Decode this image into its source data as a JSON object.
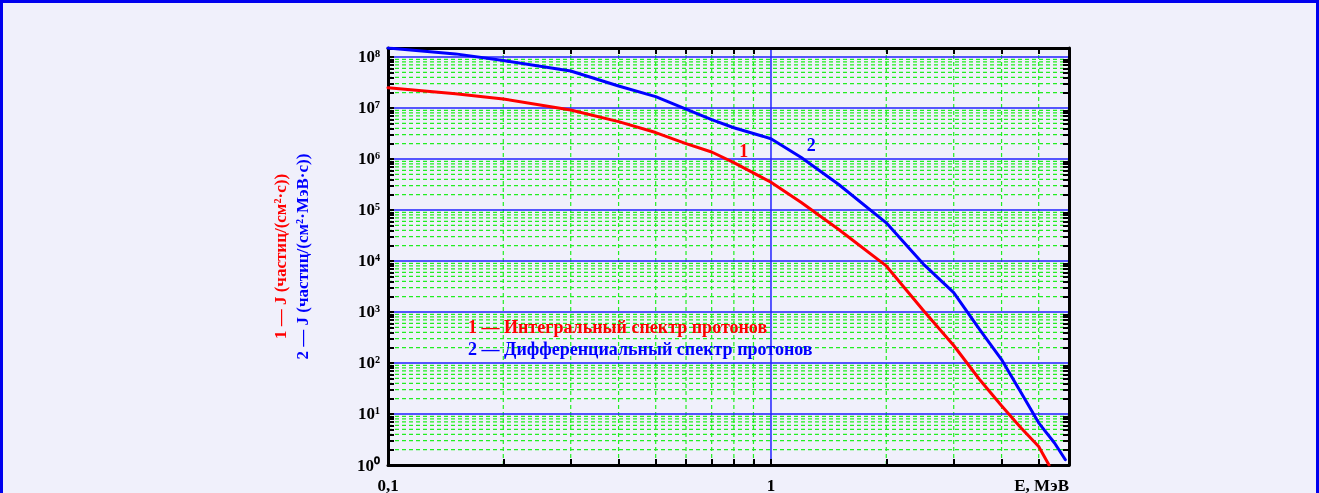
{
  "chart_data": {
    "type": "line",
    "xlabel": "E, МэВ",
    "ylabel": "1 — J (частиц/(см²·с))\n2 — J (частиц/(см²·МэВ·с))",
    "log": "xy",
    "grid": true,
    "legend": "center left",
    "marker": "none",
    "line_style": "solid",
    "xlim": [
      0.1,
      6
    ],
    "xticks": [
      {
        "value": 0.1,
        "label": "0,1"
      },
      {
        "value": 0.2,
        "label": null
      },
      {
        "value": 0.3,
        "label": null
      },
      {
        "value": 0.4,
        "label": null
      },
      {
        "value": 0.5,
        "label": null
      },
      {
        "value": 0.6,
        "label": null
      },
      {
        "value": 0.7,
        "label": null
      },
      {
        "value": 0.8,
        "label": null
      },
      {
        "value": 0.9,
        "label": null
      },
      {
        "value": 1,
        "label": "1"
      },
      {
        "value": 2,
        "label": null
      },
      {
        "value": 3,
        "label": null
      },
      {
        "value": 4,
        "label": null
      },
      {
        "value": 5,
        "label": null
      }
    ],
    "ylim": [
      1,
      150000000
    ],
    "yticks": [
      {
        "value": 1,
        "label": "10⁰"
      },
      {
        "value": 2,
        "label": null
      },
      {
        "value": 3,
        "label": null
      },
      {
        "value": 4,
        "label": null
      },
      {
        "value": 5,
        "label": null
      },
      {
        "value": 6,
        "label": null
      },
      {
        "value": 7,
        "label": null
      },
      {
        "value": 8,
        "label": null
      },
      {
        "value": 9,
        "label": null
      },
      {
        "value": 10,
        "label": "10¹"
      },
      {
        "value": 20,
        "label": null
      },
      {
        "value": 30,
        "label": null
      },
      {
        "value": 40,
        "label": null
      },
      {
        "value": 50,
        "label": null
      },
      {
        "value": 60,
        "label": null
      },
      {
        "value": 70,
        "label": null
      },
      {
        "value": 80,
        "label": null
      },
      {
        "value": 90,
        "label": null
      },
      {
        "value": 100,
        "label": "10²"
      },
      {
        "value": 200,
        "label": null
      },
      {
        "value": 300,
        "label": null
      },
      {
        "value": 400,
        "label": null
      },
      {
        "value": 500,
        "label": null
      },
      {
        "value": 600,
        "label": null
      },
      {
        "value": 700,
        "label": null
      },
      {
        "value": 800,
        "label": null
      },
      {
        "value": 900,
        "label": null
      },
      {
        "value": 1000,
        "label": "10³"
      },
      {
        "value": 2000,
        "label": null
      },
      {
        "value": 3000,
        "label": null
      },
      {
        "value": 4000,
        "label": null
      },
      {
        "value": 5000,
        "label": null
      },
      {
        "value": 6000,
        "label": null
      },
      {
        "value": 7000,
        "label": null
      },
      {
        "value": 8000,
        "label": null
      },
      {
        "value": 9000,
        "label": null
      },
      {
        "value": 10000,
        "label": "10⁴"
      },
      {
        "value": 20000,
        "label": null
      },
      {
        "value": 30000,
        "label": null
      },
      {
        "value": 40000,
        "label": null
      },
      {
        "value": 50000,
        "label": null
      },
      {
        "value": 60000,
        "label": null
      },
      {
        "value": 70000,
        "label": null
      },
      {
        "value": 80000,
        "label": null
      },
      {
        "value": 90000,
        "label": null
      },
      {
        "value": 100000,
        "label": "10⁵"
      },
      {
        "value": 200000,
        "label": null
      },
      {
        "value": 300000,
        "label": null
      },
      {
        "value": 400000,
        "label": null
      },
      {
        "value": 500000,
        "label": null
      },
      {
        "value": 600000,
        "label": null
      },
      {
        "value": 700000,
        "label": null
      },
      {
        "value": 800000,
        "label": null
      },
      {
        "value": 900000,
        "label": null
      },
      {
        "value": 1000000,
        "label": "10⁶"
      },
      {
        "value": 2000000,
        "label": null
      },
      {
        "value": 3000000,
        "label": null
      },
      {
        "value": 4000000,
        "label": null
      },
      {
        "value": 5000000,
        "label": null
      },
      {
        "value": 6000000,
        "label": null
      },
      {
        "value": 7000000,
        "label": null
      },
      {
        "value": 8000000,
        "label": null
      },
      {
        "value": 9000000,
        "label": null
      },
      {
        "value": 10000000,
        "label": "10⁷"
      },
      {
        "value": 20000000,
        "label": null
      },
      {
        "value": 30000000,
        "label": null
      },
      {
        "value": 40000000,
        "label": null
      },
      {
        "value": 50000000,
        "label": null
      },
      {
        "value": 60000000,
        "label": null
      },
      {
        "value": 70000000,
        "label": null
      },
      {
        "value": 80000000,
        "label": null
      },
      {
        "value": 90000000,
        "label": null
      },
      {
        "value": 100000000,
        "label": "10⁸"
      }
    ],
    "annotations": [
      {
        "text": "1",
        "x": 0.8,
        "y": 850000
      },
      {
        "text": "2",
        "x": 1.2,
        "y": 1070000
      }
    ],
    "series": [
      {
        "name": "1 — Интегральный спектр протонов",
        "color": "#ff0000",
        "x": [
          0.1,
          0.15,
          0.2,
          0.3,
          0.4,
          0.5,
          0.6,
          0.7,
          0.8,
          1,
          1.2,
          1.5,
          2,
          2.5,
          3,
          3.5,
          4,
          4.5,
          5,
          5.32
        ],
        "values": [
          25000000,
          19000000,
          15000000,
          9100000,
          5400000,
          3300000,
          2000000,
          1370000,
          850000,
          350000,
          140000,
          42000,
          8000,
          1070,
          220,
          48,
          14.5,
          5.3,
          2.3,
          1
        ]
      },
      {
        "name": "2 — Дифференциальный спектр протонов",
        "color": "#0000ff",
        "x": [
          0.1,
          0.15,
          0.2,
          0.3,
          0.4,
          0.5,
          0.6,
          0.7,
          0.8,
          1,
          1.2,
          1.5,
          2,
          2.5,
          3,
          3.5,
          4,
          4.5,
          5,
          5.5,
          5.87
        ],
        "values": [
          150000000,
          115000000,
          85000000,
          53000000,
          27000000,
          16700000,
          9500000,
          5900000,
          4100000,
          2500000,
          1070000,
          320000,
          56000,
          8700,
          2400,
          460,
          117,
          26,
          6.7,
          2.7,
          1.27
        ]
      }
    ]
  }
}
